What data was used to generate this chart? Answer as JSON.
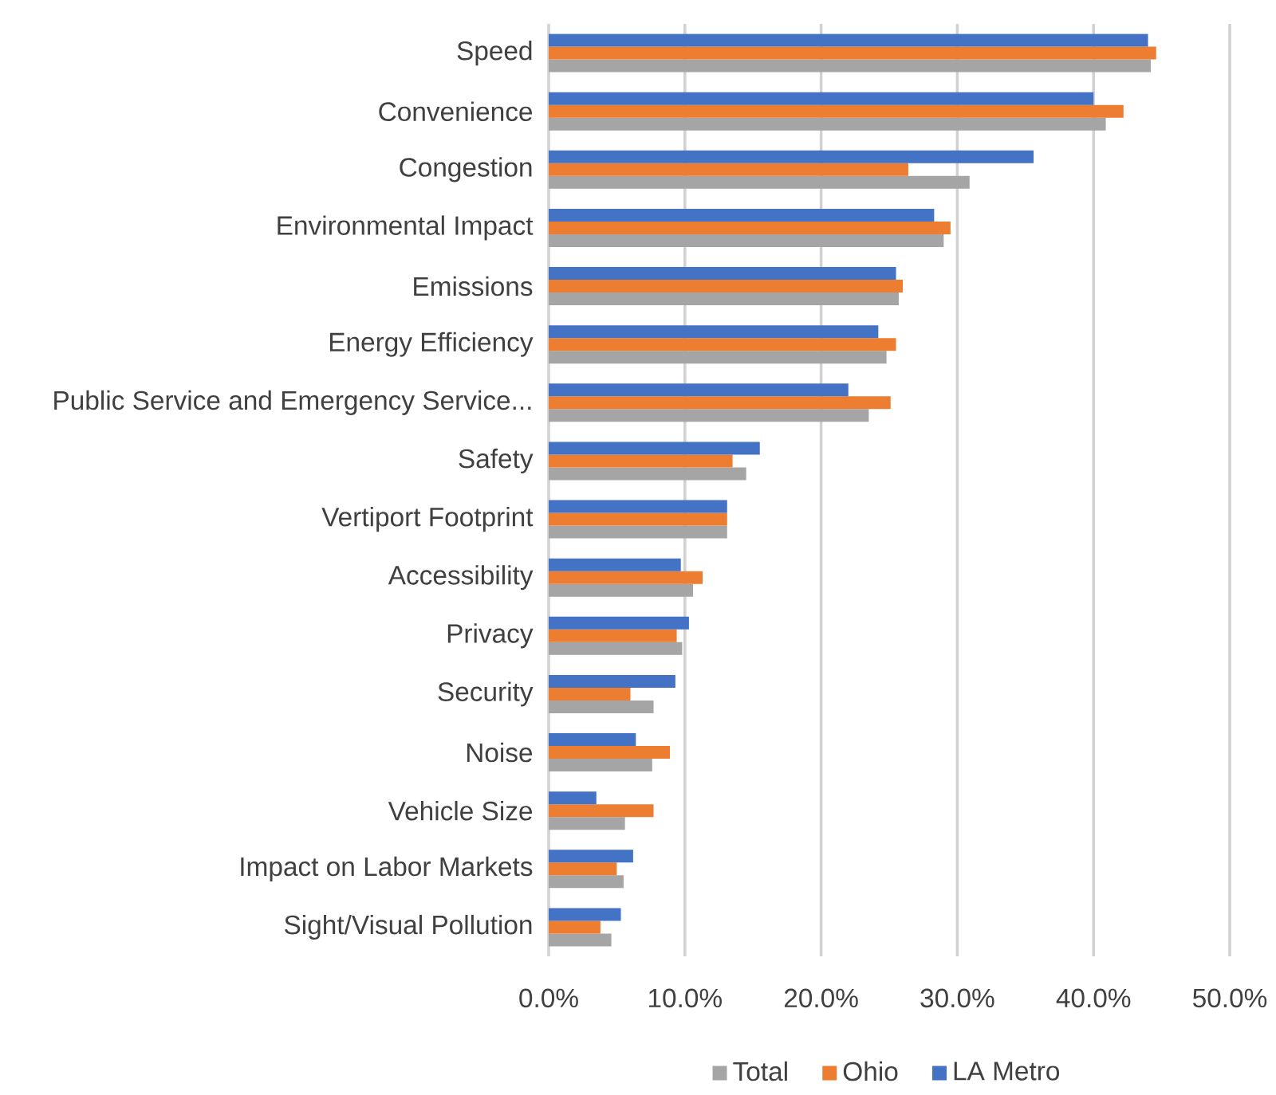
{
  "chart_data": {
    "type": "bar",
    "orientation": "horizontal",
    "categories": [
      "Speed",
      "Convenience",
      "Congestion",
      "Environmental Impact",
      "Emissions",
      "Energy Efficiency",
      "Public Service and Emergency Service...",
      "Safety",
      "Vertiport Footprint",
      "Accessibility",
      "Privacy",
      "Security",
      "Noise",
      "Vehicle Size",
      "Impact on Labor Markets",
      "Sight/Visual Pollution"
    ],
    "series": [
      {
        "name": "Total",
        "color": "#a5a5a5",
        "values": [
          44.2,
          40.9,
          30.9,
          29.0,
          25.7,
          24.8,
          23.5,
          14.5,
          13.1,
          10.6,
          9.8,
          7.7,
          7.6,
          5.6,
          5.5,
          4.6
        ]
      },
      {
        "name": "Ohio",
        "color": "#ed7d31",
        "values": [
          44.6,
          42.2,
          26.4,
          29.5,
          26.0,
          25.5,
          25.1,
          13.5,
          13.1,
          11.3,
          9.4,
          6.0,
          8.9,
          7.7,
          5.0,
          3.8
        ]
      },
      {
        "name": "LA Metro",
        "color": "#4472c4",
        "values": [
          44.0,
          40.0,
          35.6,
          28.3,
          25.5,
          24.2,
          22.0,
          15.5,
          13.1,
          9.7,
          10.3,
          9.3,
          6.4,
          3.5,
          6.2,
          5.3
        ]
      }
    ],
    "xlim": [
      0,
      50
    ],
    "xticks": [
      {
        "value": 0,
        "label": "0.0%"
      },
      {
        "value": 10,
        "label": "10.0%"
      },
      {
        "value": 20,
        "label": "20.0%"
      },
      {
        "value": 30,
        "label": "30.0%"
      },
      {
        "value": 40,
        "label": "40.0%"
      },
      {
        "value": 50,
        "label": "50.0%"
      }
    ],
    "grid": "x",
    "legend": "bottom"
  }
}
